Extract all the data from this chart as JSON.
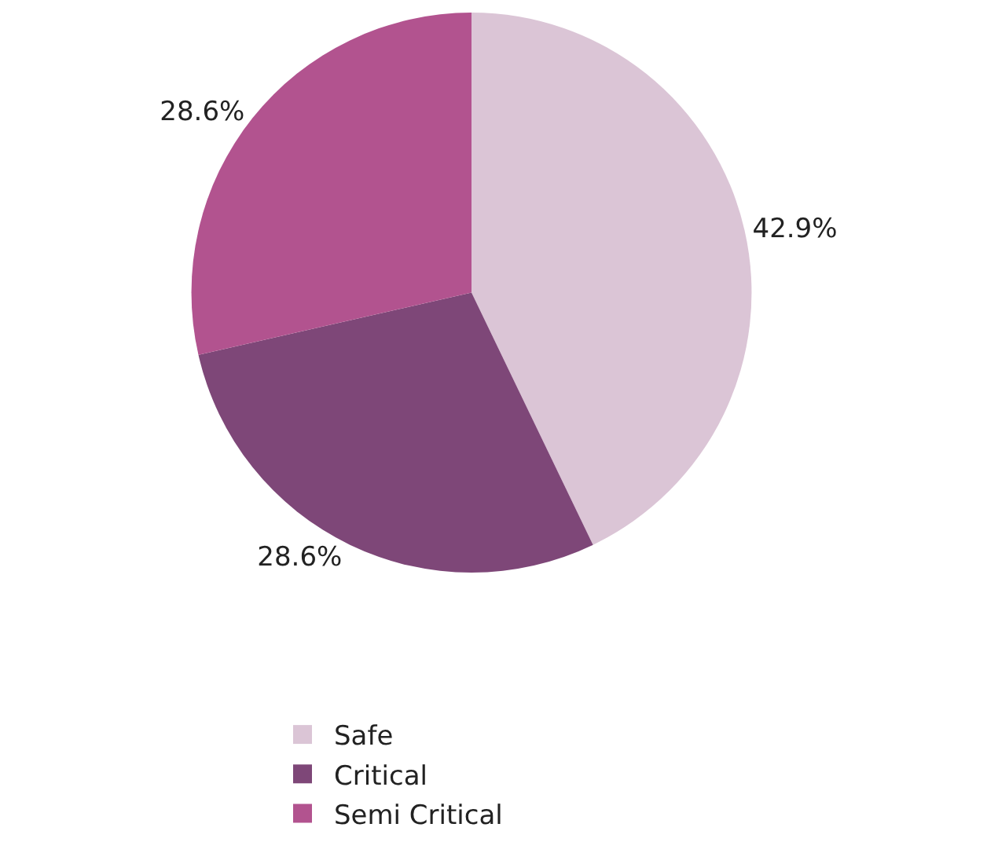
{
  "chart_data": {
    "type": "pie",
    "categories": [
      "Safe",
      "Critical",
      "Semi Critical"
    ],
    "values": [
      42.9,
      28.6,
      28.6
    ],
    "colors": [
      "#dbc5d6",
      "#7e4778",
      "#b2538f"
    ],
    "value_labels": [
      "42.9%",
      "28.6%",
      "28.6%"
    ],
    "legend": "bottom"
  }
}
